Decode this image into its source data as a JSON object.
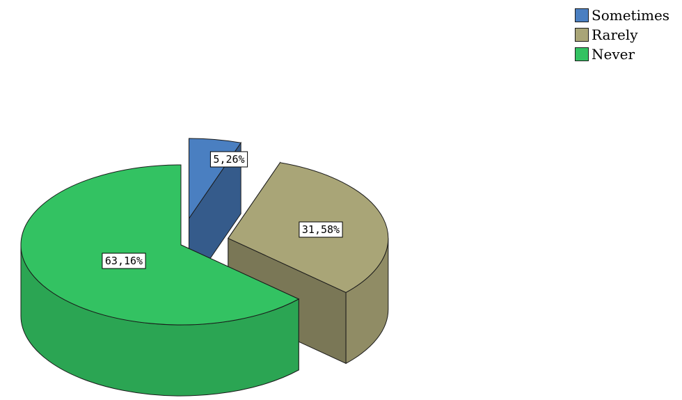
{
  "chart_data": {
    "type": "pie",
    "three_d": true,
    "exploded": true,
    "slices": [
      {
        "label": "Sometimes",
        "value": 5.26,
        "display": "5,26%",
        "color": "#4a7fc1"
      },
      {
        "label": "Rarely",
        "value": 31.58,
        "display": "31,58%",
        "color": "#a9a577"
      },
      {
        "label": "Never",
        "value": 63.16,
        "display": "63,16%",
        "color": "#33c262"
      }
    ],
    "legend": {
      "placement": "top-right",
      "entries": [
        "Sometimes",
        "Rarely",
        "Never"
      ]
    }
  }
}
